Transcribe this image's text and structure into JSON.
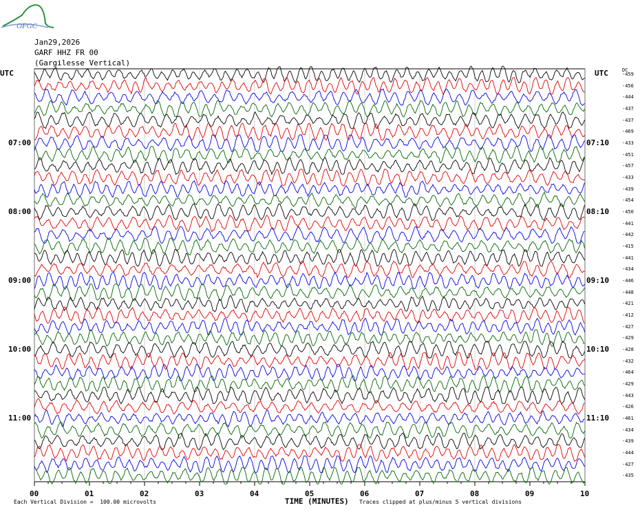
{
  "logo": {
    "name": "ofgc-logo",
    "text": "OFGC"
  },
  "header": {
    "date": "Jan29,2026",
    "station": "GARF HHZ FR 00",
    "location": "(Gargilesse Vertical)"
  },
  "left_axis": {
    "zone": "UTC",
    "labels": [
      {
        "row": 6,
        "text": "07:00"
      },
      {
        "row": 12,
        "text": "08:00"
      },
      {
        "row": 18,
        "text": "09:00"
      },
      {
        "row": 24,
        "text": "10:00"
      },
      {
        "row": 30,
        "text": "11:00"
      }
    ]
  },
  "right_axis": {
    "zone": "UTC",
    "dc_header": "DC",
    "labels": [
      {
        "row": 6,
        "text": "07:10"
      },
      {
        "row": 12,
        "text": "08:10"
      },
      {
        "row": 18,
        "text": "09:10"
      },
      {
        "row": 24,
        "text": "10:10"
      },
      {
        "row": 30,
        "text": "11:10"
      }
    ]
  },
  "footer": {
    "vertical_division": "Each Vertical Division =  100.00 microvolts",
    "clipping_note": "Traces clipped at plus/minus 5 vertical divisions"
  },
  "chart_data": {
    "type": "line",
    "xlabel": "TIME (MINUTES)",
    "x_ticks": [
      "00",
      "01",
      "02",
      "03",
      "04",
      "05",
      "06",
      "07",
      "08",
      "09",
      "10"
    ],
    "xlim": [
      0,
      10
    ],
    "trace_colors": [
      "#000000",
      "#e00000",
      "#0000e0",
      "#006400"
    ],
    "rows_per_hour": 6,
    "row_minutes": 10,
    "grid": true,
    "traces": [
      {
        "row": 0,
        "dc": "-459"
      },
      {
        "row": 1,
        "dc": "-456"
      },
      {
        "row": 2,
        "dc": "-444"
      },
      {
        "row": 3,
        "dc": "-437"
      },
      {
        "row": 4,
        "dc": "-437"
      },
      {
        "row": 5,
        "dc": "-469"
      },
      {
        "row": 6,
        "dc": "-433"
      },
      {
        "row": 7,
        "dc": "-451"
      },
      {
        "row": 8,
        "dc": "-457"
      },
      {
        "row": 9,
        "dc": "-433"
      },
      {
        "row": 10,
        "dc": "-439"
      },
      {
        "row": 11,
        "dc": "-454"
      },
      {
        "row": 12,
        "dc": "-450"
      },
      {
        "row": 13,
        "dc": "-441"
      },
      {
        "row": 14,
        "dc": "-442"
      },
      {
        "row": 15,
        "dc": "-415"
      },
      {
        "row": 16,
        "dc": "-441"
      },
      {
        "row": 17,
        "dc": "-434"
      },
      {
        "row": 18,
        "dc": "-446"
      },
      {
        "row": 19,
        "dc": "-448"
      },
      {
        "row": 20,
        "dc": "-421"
      },
      {
        "row": 21,
        "dc": "-412"
      },
      {
        "row": 22,
        "dc": "-427"
      },
      {
        "row": 23,
        "dc": "-429"
      },
      {
        "row": 24,
        "dc": "-428"
      },
      {
        "row": 25,
        "dc": "-432"
      },
      {
        "row": 26,
        "dc": "-464"
      },
      {
        "row": 27,
        "dc": "-429"
      },
      {
        "row": 28,
        "dc": "-443"
      },
      {
        "row": 29,
        "dc": "-426"
      },
      {
        "row": 30,
        "dc": "-461"
      },
      {
        "row": 31,
        "dc": "-434"
      },
      {
        "row": 32,
        "dc": "-439"
      },
      {
        "row": 33,
        "dc": "-444"
      },
      {
        "row": 34,
        "dc": "-427"
      },
      {
        "row": 35,
        "dc": "-435"
      }
    ]
  }
}
